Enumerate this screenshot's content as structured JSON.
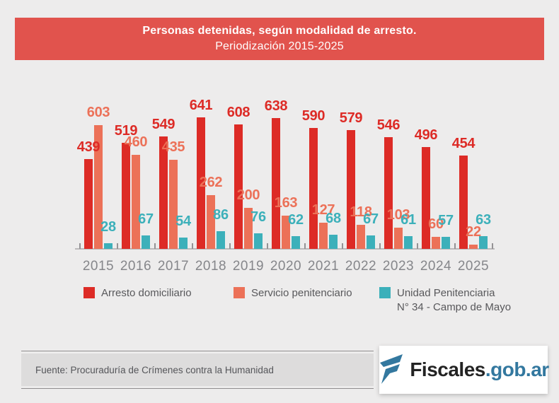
{
  "page": {
    "background": "#edecec"
  },
  "header": {
    "title": "Personas detenidas, según modalidad de arresto.",
    "subtitle": "Periodización 2015-2025",
    "background": "#e1534d"
  },
  "chart_data": {
    "type": "bar",
    "title": "Personas detenidas, según modalidad de arresto.",
    "subtitle": "Periodización 2015-2025",
    "categories": [
      "2015",
      "2016",
      "2017",
      "2018",
      "2019",
      "2020",
      "2021",
      "2022",
      "2023",
      "2024",
      "2025"
    ],
    "series": [
      {
        "name": "Arresto domiciliario",
        "color": "#dd2b26",
        "values": [
          439,
          519,
          549,
          641,
          608,
          638,
          590,
          579,
          546,
          496,
          454
        ]
      },
      {
        "name": "Servicio penitenciario",
        "color": "#ec7158",
        "values": [
          603,
          460,
          435,
          262,
          200,
          163,
          127,
          118,
          103,
          60,
          22
        ]
      },
      {
        "name": "Unidad Penitenciaria N° 34 - Campo de Mayo",
        "color": "#3cb0ba",
        "values": [
          28,
          67,
          54,
          86,
          76,
          62,
          68,
          67,
          61,
          57,
          63
        ]
      }
    ],
    "ylim": [
      0,
      660
    ],
    "grid": false,
    "data_labels": true,
    "legend_position": "bottom",
    "axis_color": "#bbb9ba"
  },
  "legend": {
    "items": [
      {
        "label": "Arresto domiciliario",
        "color": "#dd2b26"
      },
      {
        "label": "Servicio penitenciario",
        "color": "#ec7158"
      },
      {
        "line1": "Unidad Penitenciaria",
        "line2": "N° 34 - Campo de Mayo",
        "color": "#3cb0ba"
      }
    ]
  },
  "footer": {
    "source": "Fuente: Procuraduría de Crímenes contra la Humanidad"
  },
  "logo": {
    "name": "Fiscales",
    "suffix": ".gob.ar",
    "dark_color": "#232323",
    "blue_color": "#33789f"
  }
}
